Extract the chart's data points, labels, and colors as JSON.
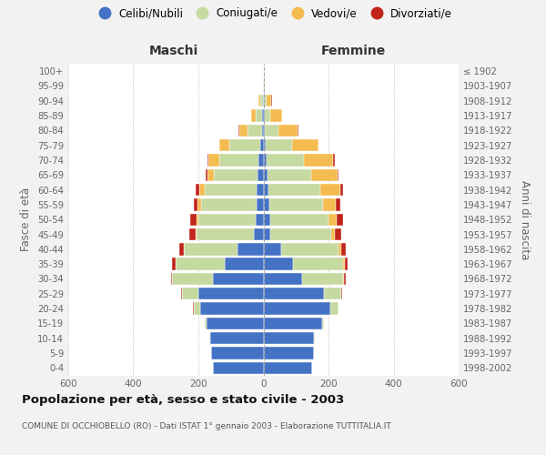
{
  "age_groups": [
    "0-4",
    "5-9",
    "10-14",
    "15-19",
    "20-24",
    "25-29",
    "30-34",
    "35-39",
    "40-44",
    "45-49",
    "50-54",
    "55-59",
    "60-64",
    "65-69",
    "70-74",
    "75-79",
    "80-84",
    "85-89",
    "90-94",
    "95-99",
    "100+"
  ],
  "birth_years": [
    "1998-2002",
    "1993-1997",
    "1988-1992",
    "1983-1987",
    "1978-1982",
    "1973-1977",
    "1968-1972",
    "1963-1967",
    "1958-1962",
    "1953-1957",
    "1948-1952",
    "1943-1947",
    "1938-1942",
    "1933-1937",
    "1928-1932",
    "1923-1927",
    "1918-1922",
    "1913-1917",
    "1908-1912",
    "1903-1907",
    "≤ 1902"
  ],
  "male_celibi": [
    155,
    160,
    165,
    175,
    195,
    200,
    155,
    120,
    80,
    30,
    25,
    22,
    20,
    18,
    15,
    10,
    5,
    3,
    2,
    0,
    0
  ],
  "male_coniugati": [
    0,
    0,
    2,
    5,
    20,
    50,
    125,
    150,
    165,
    175,
    175,
    170,
    160,
    135,
    120,
    95,
    45,
    20,
    8,
    2,
    0
  ],
  "male_vedovi": [
    0,
    0,
    0,
    0,
    0,
    0,
    0,
    0,
    0,
    2,
    5,
    10,
    18,
    20,
    35,
    30,
    25,
    15,
    5,
    0,
    0
  ],
  "male_divorziati": [
    0,
    0,
    0,
    0,
    2,
    2,
    5,
    10,
    15,
    20,
    20,
    12,
    10,
    5,
    2,
    2,
    2,
    0,
    0,
    0,
    0
  ],
  "female_nubili": [
    150,
    155,
    155,
    180,
    205,
    185,
    120,
    90,
    55,
    22,
    20,
    18,
    15,
    12,
    10,
    8,
    5,
    3,
    2,
    0,
    0
  ],
  "female_coniugate": [
    0,
    0,
    2,
    5,
    25,
    55,
    125,
    155,
    175,
    185,
    180,
    165,
    160,
    135,
    115,
    80,
    40,
    18,
    8,
    1,
    0
  ],
  "female_vedove": [
    0,
    0,
    0,
    0,
    0,
    0,
    2,
    5,
    8,
    12,
    25,
    40,
    60,
    80,
    90,
    80,
    60,
    35,
    15,
    2,
    0
  ],
  "female_divorziate": [
    0,
    0,
    0,
    0,
    0,
    2,
    5,
    10,
    15,
    20,
    20,
    12,
    10,
    5,
    5,
    2,
    2,
    2,
    2,
    2,
    0
  ],
  "color_celibi": "#4472c4",
  "color_coniugati": "#c5d9a0",
  "color_vedovi": "#f4bc50",
  "color_divorziati": "#c0241a",
  "xlim": 600,
  "title": "Popolazione per età, sesso e stato civile - 2003",
  "subtitle": "COMUNE DI OCCHIOBELLO (RO) - Dati ISTAT 1° gennaio 2003 - Elaborazione TUTTITALIA.IT",
  "ylabel_left": "Fasce di età",
  "ylabel_right": "Anni di nascita",
  "label_maschi": "Maschi",
  "label_femmine": "Femmine",
  "bg_color": "#f2f2f2",
  "plot_bg_color": "#ffffff",
  "legend_labels": [
    "Celibi/Nubili",
    "Coniugati/e",
    "Vedovi/e",
    "Divorziati/e"
  ],
  "grid_color": "#cccccc",
  "tick_label_color": "#666666"
}
